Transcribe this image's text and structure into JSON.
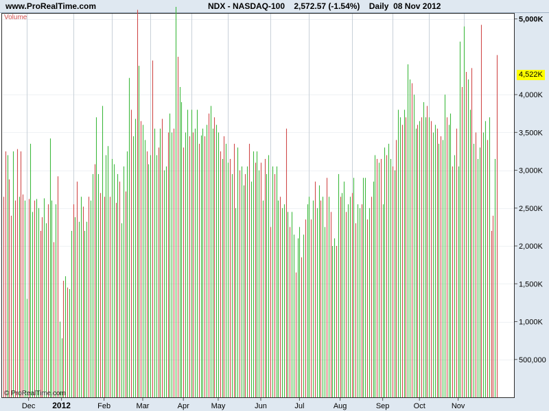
{
  "header": {
    "site": "www.ProRealTime.com",
    "info": "NDX - NASDAQ-100    2,572.57 (-1.54%)    Daily  08 Nov 2012"
  },
  "panel_label": "Volume",
  "copyright": "© ProRealTime.com",
  "colors": {
    "up": "#3cb83c",
    "down": "#d04848",
    "axis_bg": "#dfe8f1",
    "highlight": "#ffff00"
  },
  "chart_data": {
    "type": "bar",
    "title": "Volume",
    "ylim": [
      0,
      5250000
    ],
    "y_ticks": [
      {
        "value": 500000,
        "label": "500,000"
      },
      {
        "value": 1000000,
        "label": "1,000K"
      },
      {
        "value": 1500000,
        "label": "1,500K"
      },
      {
        "value": 2000000,
        "label": "2,000K"
      },
      {
        "value": 2500000,
        "label": "2,500K"
      },
      {
        "value": 3000000,
        "label": "3,000K"
      },
      {
        "value": 3500000,
        "label": "3,500K"
      },
      {
        "value": 4000000,
        "label": "4,000K"
      },
      {
        "value": 5000000,
        "label": "5,000K"
      }
    ],
    "highlight": {
      "value": 4522000,
      "label": "4,522K"
    },
    "x_ticks": [
      {
        "label": "Dec",
        "index": 13
      },
      {
        "label": "2012",
        "index": 30,
        "year": true
      },
      {
        "label": "Feb",
        "index": 52
      },
      {
        "label": "Mar",
        "index": 72
      },
      {
        "label": "Apr",
        "index": 93
      },
      {
        "label": "May",
        "index": 111
      },
      {
        "label": "Jun",
        "index": 133
      },
      {
        "label": "Jul",
        "index": 153
      },
      {
        "label": "Aug",
        "index": 174
      },
      {
        "label": "Sep",
        "index": 196
      },
      {
        "label": "Oct",
        "index": 215
      },
      {
        "label": "Nov",
        "index": 235
      }
    ],
    "vlines": [
      12,
      36,
      56,
      76,
      97,
      116,
      138,
      158,
      180,
      201,
      220,
      238
    ],
    "series": [
      {
        "values": [
          2650000,
          3250000,
          3200000,
          2880000,
          2400000,
          3250000,
          2600000,
          3280000,
          2650000,
          3250000,
          2680000,
          2600000,
          1300000,
          2620000,
          3350000,
          2450000,
          2600000,
          2620000,
          2500000,
          2200000,
          2380000,
          2630000,
          2300000,
          2550000,
          3420000,
          2600000,
          2050000,
          2550000,
          2920000,
          1000000,
          780000,
          1540000,
          1600000,
          1450000,
          1430000,
          2200000,
          2550000,
          2380000,
          2850000,
          2320000,
          2650000,
          2520000,
          2200000,
          2320000,
          2650000,
          2600000,
          2950000,
          3080000,
          3700000,
          2950000,
          2700000,
          3850000,
          2650000,
          3200000,
          3320000,
          2650000,
          3150000,
          3080000,
          2570000,
          2950000,
          2850000,
          2300000,
          3050000,
          2720000,
          3250000,
          4220000,
          3800000,
          3450000,
          3680000,
          5120000,
          4380000,
          3650000,
          3600000,
          3400000,
          3250000,
          3080000,
          3200000,
          4450000,
          3550000,
          3200000,
          3300000,
          3550000,
          3680000,
          3000000,
          3050000,
          3500000,
          3750000,
          3500000,
          3550000,
          5160000,
          4500000,
          4100000,
          3900000,
          3300000,
          3500000,
          3800000,
          3450000,
          3800000,
          3500000,
          3550000,
          3800000,
          3350000,
          3460000,
          3550000,
          3450000,
          3600000,
          3750000,
          3850000,
          3550000,
          3700000,
          3600000,
          3500000,
          3250000,
          3150000,
          3450000,
          3350000,
          3100000,
          3150000,
          2950000,
          3350000,
          2500000,
          3300000,
          3000000,
          3050000,
          2800000,
          2950000,
          3050000,
          3350000,
          2850000,
          3250000,
          3100000,
          3250000,
          3000000,
          3100000,
          2600000,
          3150000,
          2950000,
          3200000,
          2250000,
          3050000,
          2950000,
          3050000,
          2600000,
          2650000,
          2500000,
          2550000,
          3550000,
          2450000,
          2250000,
          2450000,
          2150000,
          1650000,
          2100000,
          2250000,
          1850000,
          2150000,
          2350000,
          2550000,
          2650000,
          2350000,
          2600000,
          2850000,
          2500000,
          2800000,
          2600000,
          2650000,
          2250000,
          2900000,
          2650000,
          2450000,
          2000000,
          2100000,
          2000000,
          2950000,
          2650000,
          2700000,
          2850000,
          2450000,
          2550000,
          2650000,
          2700000,
          2900000,
          2300000,
          2550000,
          2500000,
          2550000,
          2900000,
          2900000,
          2350000,
          2500000,
          2650000,
          2850000,
          3200000,
          3150000,
          3100000,
          3150000,
          2550000,
          3300000,
          3200000,
          3350000,
          3150000,
          3050000,
          3000000,
          3400000,
          3800000,
          3700000,
          3600000,
          3800000,
          3700000,
          4400000,
          4200000,
          4150000,
          4000000,
          3550000,
          3600000,
          3650000,
          3700000,
          3900000,
          3700000,
          3850000,
          3700000,
          3650000,
          3500000,
          3600000,
          3550000,
          3350000,
          3450000,
          3400000,
          4000000,
          3700000,
          3600000,
          3750000,
          3050000,
          3200000,
          3550000,
          3050000,
          4700000,
          4100000,
          4900000,
          4300000,
          4200000,
          3800000,
          4350000,
          3350000,
          3500000,
          3150000,
          3300000,
          4922000,
          3500000,
          3650000,
          3400000,
          3700000,
          2200000,
          2400000,
          3150000,
          4522000
        ],
        "up": [
          0,
          0,
          1,
          0,
          0,
          1,
          0,
          0,
          1,
          0,
          0,
          1,
          1,
          0,
          1,
          1,
          0,
          1,
          1,
          0,
          0,
          1,
          1,
          0,
          1,
          1,
          0,
          1,
          0,
          1,
          1,
          0,
          1,
          0,
          1,
          1,
          0,
          1,
          0,
          1,
          1,
          0,
          1,
          1,
          0,
          1,
          1,
          0,
          1,
          1,
          0,
          1,
          0,
          1,
          1,
          0,
          1,
          1,
          0,
          1,
          0,
          1,
          1,
          0,
          1,
          1,
          0,
          1,
          1,
          0,
          1,
          0,
          1,
          1,
          0,
          1,
          1,
          0,
          1,
          1,
          0,
          1,
          0,
          1,
          1,
          0,
          1,
          1,
          0,
          1,
          0,
          1,
          1,
          0,
          1,
          1,
          0,
          1,
          0,
          1,
          1,
          0,
          1,
          1,
          0,
          1,
          0,
          1,
          1,
          0,
          1,
          1,
          0,
          1,
          0,
          1,
          1,
          0,
          1,
          0,
          1,
          1,
          0,
          1,
          1,
          0,
          1,
          0,
          1,
          1,
          0,
          1,
          1,
          0,
          1,
          0,
          1,
          1,
          0,
          1,
          0,
          1,
          1,
          0,
          1,
          1,
          0,
          1,
          0,
          1,
          1,
          0,
          1,
          1,
          0,
          1,
          0,
          1,
          1,
          0,
          1,
          0,
          1,
          1,
          0,
          1,
          1,
          0,
          1,
          0,
          1,
          1,
          0,
          1,
          0,
          1,
          1,
          0,
          1,
          1,
          0,
          1,
          0,
          1,
          1,
          0,
          1,
          1,
          0,
          1,
          0,
          1,
          1,
          0,
          1,
          0,
          1,
          1,
          0,
          1,
          1,
          0,
          1,
          0,
          1,
          1,
          0,
          1,
          0,
          1,
          1,
          0,
          1,
          1,
          0,
          1,
          0,
          1,
          1,
          0,
          1,
          0,
          1,
          1,
          0,
          1,
          0,
          1,
          1,
          0,
          1,
          1,
          0,
          1,
          0,
          1,
          1,
          0,
          1,
          0,
          1,
          1,
          0,
          1,
          0,
          1,
          1,
          0,
          1,
          1,
          0,
          1,
          0,
          0,
          1,
          0
        ]
      }
    ]
  }
}
